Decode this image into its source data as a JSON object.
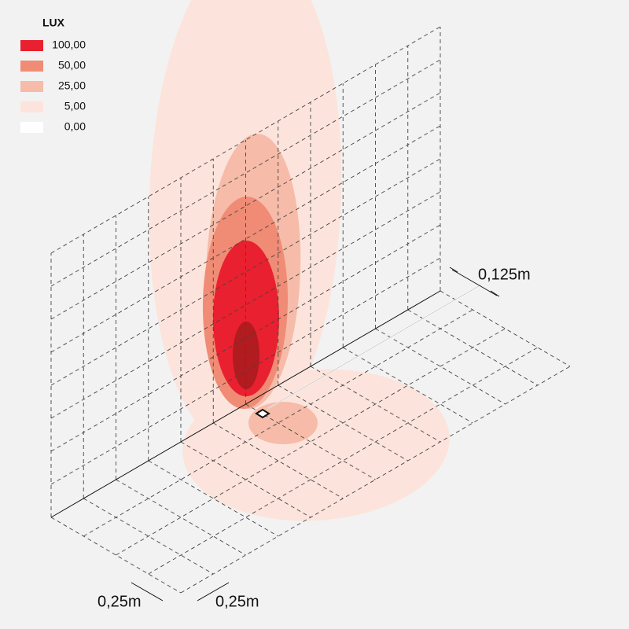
{
  "legend": {
    "title": "LUX",
    "items": [
      {
        "label": "100,00",
        "color": "#e8202f"
      },
      {
        "label": "50,00",
        "color": "#f08c76"
      },
      {
        "label": "25,00",
        "color": "#f6bca9"
      },
      {
        "label": "5,00",
        "color": "#fce4dc"
      },
      {
        "label": "0,00",
        "color": "#ffffff"
      }
    ]
  },
  "dimensions": {
    "mount_distance": "0,125m",
    "grid_x": "0,25m",
    "grid_y": "0,25m"
  }
}
